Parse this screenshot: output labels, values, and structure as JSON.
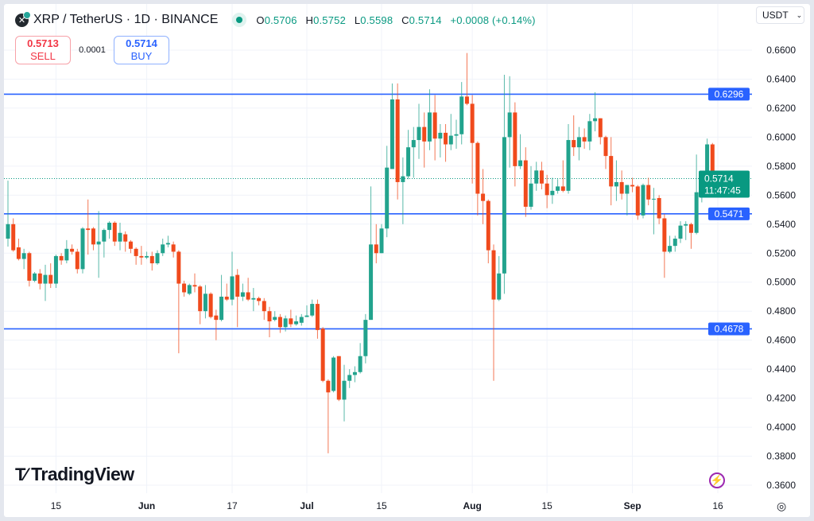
{
  "header": {
    "title": "XRP / TetherUS · 1D · BINANCE",
    "symbol_icon": "xrp-logo-icon",
    "ohlc": {
      "o_label": "O",
      "o": "0.5706",
      "h_label": "H",
      "h": "0.5752",
      "l_label": "L",
      "l": "0.5598",
      "c_label": "C",
      "c": "0.5714",
      "change": "+0.0008 (+0.14%)"
    }
  },
  "trade": {
    "sell_price": "0.5713",
    "sell_label": "SELL",
    "spread": "0.0001",
    "buy_price": "0.5714",
    "buy_label": "BUY"
  },
  "currency": {
    "selected": "USDT"
  },
  "branding": {
    "logo_text": "TradingView"
  },
  "colors": {
    "up": "#22a38d",
    "down": "#f04a1c",
    "level": "#2962ff",
    "last": "#089981"
  },
  "chart_data": {
    "type": "candlestick",
    "title": "XRP / TetherUS · 1D · BINANCE",
    "ylim": [
      0.36,
      0.66
    ],
    "yticks": [
      "0.6600",
      "0.6400",
      "0.6200",
      "0.6000",
      "0.5800",
      "0.5600",
      "0.5400",
      "0.5200",
      "0.5000",
      "0.4800",
      "0.4600",
      "0.4400",
      "0.4200",
      "0.4000",
      "0.3800",
      "0.3600"
    ],
    "ytick_values": [
      0.66,
      0.64,
      0.62,
      0.6,
      0.58,
      0.56,
      0.54,
      0.52,
      0.5,
      0.48,
      0.46,
      0.44,
      0.42,
      0.4,
      0.38,
      0.36
    ],
    "xticks": [
      {
        "label": "15",
        "index": 9,
        "bold": false
      },
      {
        "label": "Jun",
        "index": 26,
        "bold": true
      },
      {
        "label": "17",
        "index": 42,
        "bold": false
      },
      {
        "label": "Jul",
        "index": 56,
        "bold": true
      },
      {
        "label": "15",
        "index": 70,
        "bold": false
      },
      {
        "label": "Aug",
        "index": 87,
        "bold": true
      },
      {
        "label": "15",
        "index": 101,
        "bold": false
      },
      {
        "label": "Sep",
        "index": 117,
        "bold": true
      },
      {
        "label": "16",
        "index": 133,
        "bold": false
      }
    ],
    "horizontal_levels": [
      {
        "value": 0.6296,
        "label": "0.6296"
      },
      {
        "value": 0.5471,
        "label": "0.5471"
      },
      {
        "value": 0.4678,
        "label": "0.4678"
      }
    ],
    "last_price": {
      "value": 0.5714,
      "label": "0.5714",
      "countdown": "11:47:45"
    },
    "candles_ohlc": [
      [
        0.53,
        0.57,
        0.5245,
        0.54
      ],
      [
        0.54,
        0.544,
        0.521,
        0.522
      ],
      [
        0.524,
        0.53,
        0.515,
        0.516
      ],
      [
        0.516,
        0.523,
        0.509,
        0.52
      ],
      [
        0.52,
        0.521,
        0.497,
        0.501
      ],
      [
        0.501,
        0.507,
        0.5,
        0.506
      ],
      [
        0.506,
        0.509,
        0.495,
        0.499
      ],
      [
        0.499,
        0.512,
        0.487,
        0.505
      ],
      [
        0.505,
        0.513,
        0.496,
        0.499
      ],
      [
        0.499,
        0.519,
        0.496,
        0.518
      ],
      [
        0.518,
        0.52,
        0.512,
        0.515
      ],
      [
        0.515,
        0.529,
        0.513,
        0.523
      ],
      [
        0.523,
        0.526,
        0.519,
        0.521
      ],
      [
        0.521,
        0.523,
        0.506,
        0.509
      ],
      [
        0.509,
        0.538,
        0.506,
        0.537
      ],
      [
        0.537,
        0.557,
        0.519,
        0.536
      ],
      [
        0.537,
        0.538,
        0.522,
        0.526
      ],
      [
        0.526,
        0.549,
        0.503,
        0.528
      ],
      [
        0.528,
        0.537,
        0.517,
        0.536
      ],
      [
        0.536,
        0.542,
        0.53,
        0.541
      ],
      [
        0.541,
        0.542,
        0.525,
        0.528
      ],
      [
        0.528,
        0.541,
        0.522,
        0.534
      ],
      [
        0.533,
        0.535,
        0.521,
        0.528
      ],
      [
        0.528,
        0.529,
        0.52,
        0.523
      ],
      [
        0.523,
        0.524,
        0.512,
        0.518
      ],
      [
        0.518,
        0.525,
        0.512,
        0.517
      ],
      [
        0.517,
        0.521,
        0.516,
        0.518
      ],
      [
        0.518,
        0.521,
        0.508,
        0.513
      ],
      [
        0.513,
        0.522,
        0.512,
        0.52
      ],
      [
        0.52,
        0.53,
        0.518,
        0.526
      ],
      [
        0.526,
        0.532,
        0.524,
        0.527
      ],
      [
        0.526,
        0.528,
        0.517,
        0.521
      ],
      [
        0.521,
        0.522,
        0.451,
        0.499
      ],
      [
        0.499,
        0.501,
        0.49,
        0.493
      ],
      [
        0.492,
        0.499,
        0.491,
        0.498
      ],
      [
        0.498,
        0.506,
        0.493,
        0.497
      ],
      [
        0.497,
        0.498,
        0.471,
        0.48
      ],
      [
        0.48,
        0.498,
        0.475,
        0.492
      ],
      [
        0.492,
        0.493,
        0.475,
        0.476
      ],
      [
        0.477,
        0.481,
        0.46,
        0.474
      ],
      [
        0.474,
        0.505,
        0.473,
        0.49
      ],
      [
        0.49,
        0.499,
        0.487,
        0.488
      ],
      [
        0.488,
        0.521,
        0.484,
        0.504
      ],
      [
        0.505,
        0.509,
        0.469,
        0.49
      ],
      [
        0.49,
        0.499,
        0.487,
        0.493
      ],
      [
        0.493,
        0.503,
        0.487,
        0.488
      ],
      [
        0.488,
        0.496,
        0.48,
        0.489
      ],
      [
        0.489,
        0.49,
        0.484,
        0.487
      ],
      [
        0.487,
        0.489,
        0.474,
        0.48
      ],
      [
        0.48,
        0.483,
        0.462,
        0.473
      ],
      [
        0.474,
        0.48,
        0.473,
        0.476
      ],
      [
        0.476,
        0.478,
        0.465,
        0.469
      ],
      [
        0.469,
        0.477,
        0.466,
        0.475
      ],
      [
        0.475,
        0.481,
        0.469,
        0.471
      ],
      [
        0.471,
        0.477,
        0.47,
        0.473
      ],
      [
        0.472,
        0.478,
        0.47,
        0.476
      ],
      [
        0.476,
        0.484,
        0.476,
        0.477
      ],
      [
        0.477,
        0.488,
        0.476,
        0.485
      ],
      [
        0.485,
        0.488,
        0.461,
        0.467
      ],
      [
        0.468,
        0.469,
        0.431,
        0.432
      ],
      [
        0.432,
        0.433,
        0.382,
        0.424
      ],
      [
        0.425,
        0.449,
        0.424,
        0.448
      ],
      [
        0.449,
        0.449,
        0.418,
        0.419
      ],
      [
        0.419,
        0.443,
        0.404,
        0.432
      ],
      [
        0.432,
        0.44,
        0.427,
        0.436
      ],
      [
        0.436,
        0.442,
        0.431,
        0.438
      ],
      [
        0.438,
        0.458,
        0.437,
        0.449
      ],
      [
        0.449,
        0.478,
        0.444,
        0.474
      ],
      [
        0.474,
        0.566,
        0.474,
        0.526
      ],
      [
        0.526,
        0.54,
        0.513,
        0.52
      ],
      [
        0.52,
        0.54,
        0.52,
        0.537
      ],
      [
        0.537,
        0.594,
        0.531,
        0.579
      ],
      [
        0.578,
        0.637,
        0.578,
        0.626
      ],
      [
        0.626,
        0.637,
        0.557,
        0.569
      ],
      [
        0.569,
        0.586,
        0.54,
        0.573
      ],
      [
        0.573,
        0.605,
        0.571,
        0.593
      ],
      [
        0.593,
        0.607,
        0.572,
        0.598
      ],
      [
        0.598,
        0.623,
        0.585,
        0.607
      ],
      [
        0.607,
        0.617,
        0.579,
        0.597
      ],
      [
        0.597,
        0.633,
        0.591,
        0.617
      ],
      [
        0.617,
        0.629,
        0.584,
        0.599
      ],
      [
        0.599,
        0.609,
        0.586,
        0.603
      ],
      [
        0.603,
        0.609,
        0.583,
        0.595
      ],
      [
        0.595,
        0.616,
        0.591,
        0.601
      ],
      [
        0.601,
        0.612,
        0.592,
        0.602
      ],
      [
        0.602,
        0.638,
        0.595,
        0.628
      ],
      [
        0.628,
        0.658,
        0.622,
        0.623
      ],
      [
        0.623,
        0.629,
        0.568,
        0.596
      ],
      [
        0.596,
        0.597,
        0.546,
        0.561
      ],
      [
        0.561,
        0.578,
        0.54,
        0.556
      ],
      [
        0.556,
        0.557,
        0.513,
        0.522
      ],
      [
        0.522,
        0.526,
        0.432,
        0.488
      ],
      [
        0.488,
        0.518,
        0.487,
        0.506
      ],
      [
        0.506,
        0.643,
        0.492,
        0.6
      ],
      [
        0.6,
        0.642,
        0.579,
        0.617
      ],
      [
        0.617,
        0.624,
        0.566,
        0.58
      ],
      [
        0.58,
        0.602,
        0.578,
        0.584
      ],
      [
        0.584,
        0.593,
        0.545,
        0.552
      ],
      [
        0.552,
        0.58,
        0.55,
        0.568
      ],
      [
        0.568,
        0.583,
        0.563,
        0.577
      ],
      [
        0.577,
        0.583,
        0.564,
        0.568
      ],
      [
        0.568,
        0.574,
        0.551,
        0.56
      ],
      [
        0.56,
        0.572,
        0.554,
        0.563
      ],
      [
        0.563,
        0.571,
        0.561,
        0.566
      ],
      [
        0.566,
        0.584,
        0.562,
        0.563
      ],
      [
        0.563,
        0.609,
        0.561,
        0.598
      ],
      [
        0.598,
        0.615,
        0.587,
        0.593
      ],
      [
        0.593,
        0.607,
        0.584,
        0.6
      ],
      [
        0.6,
        0.606,
        0.592,
        0.597
      ],
      [
        0.597,
        0.616,
        0.591,
        0.611
      ],
      [
        0.611,
        0.631,
        0.604,
        0.613
      ],
      [
        0.613,
        0.613,
        0.595,
        0.6
      ],
      [
        0.6,
        0.601,
        0.578,
        0.587
      ],
      [
        0.587,
        0.6,
        0.553,
        0.566
      ],
      [
        0.566,
        0.584,
        0.556,
        0.569
      ],
      [
        0.569,
        0.577,
        0.557,
        0.561
      ],
      [
        0.561,
        0.567,
        0.546,
        0.567
      ],
      [
        0.567,
        0.572,
        0.562,
        0.566
      ],
      [
        0.566,
        0.567,
        0.543,
        0.546
      ],
      [
        0.546,
        0.568,
        0.544,
        0.567
      ],
      [
        0.567,
        0.572,
        0.553,
        0.557
      ],
      [
        0.557,
        0.565,
        0.533,
        0.5575
      ],
      [
        0.558,
        0.56,
        0.54,
        0.544
      ],
      [
        0.544,
        0.547,
        0.503,
        0.521
      ],
      [
        0.521,
        0.532,
        0.52,
        0.525
      ],
      [
        0.525,
        0.532,
        0.521,
        0.53
      ],
      [
        0.53,
        0.542,
        0.527,
        0.539
      ],
      [
        0.539,
        0.542,
        0.529,
        0.54
      ],
      [
        0.54,
        0.541,
        0.523,
        0.534
      ],
      [
        0.534,
        0.588,
        0.533,
        0.562
      ],
      [
        0.562,
        0.574,
        0.555,
        0.572
      ],
      [
        0.572,
        0.599,
        0.571,
        0.595
      ],
      [
        0.595,
        0.596,
        0.568,
        0.571
      ],
      [
        0.5706,
        0.5752,
        0.5598,
        0.5714
      ]
    ]
  }
}
